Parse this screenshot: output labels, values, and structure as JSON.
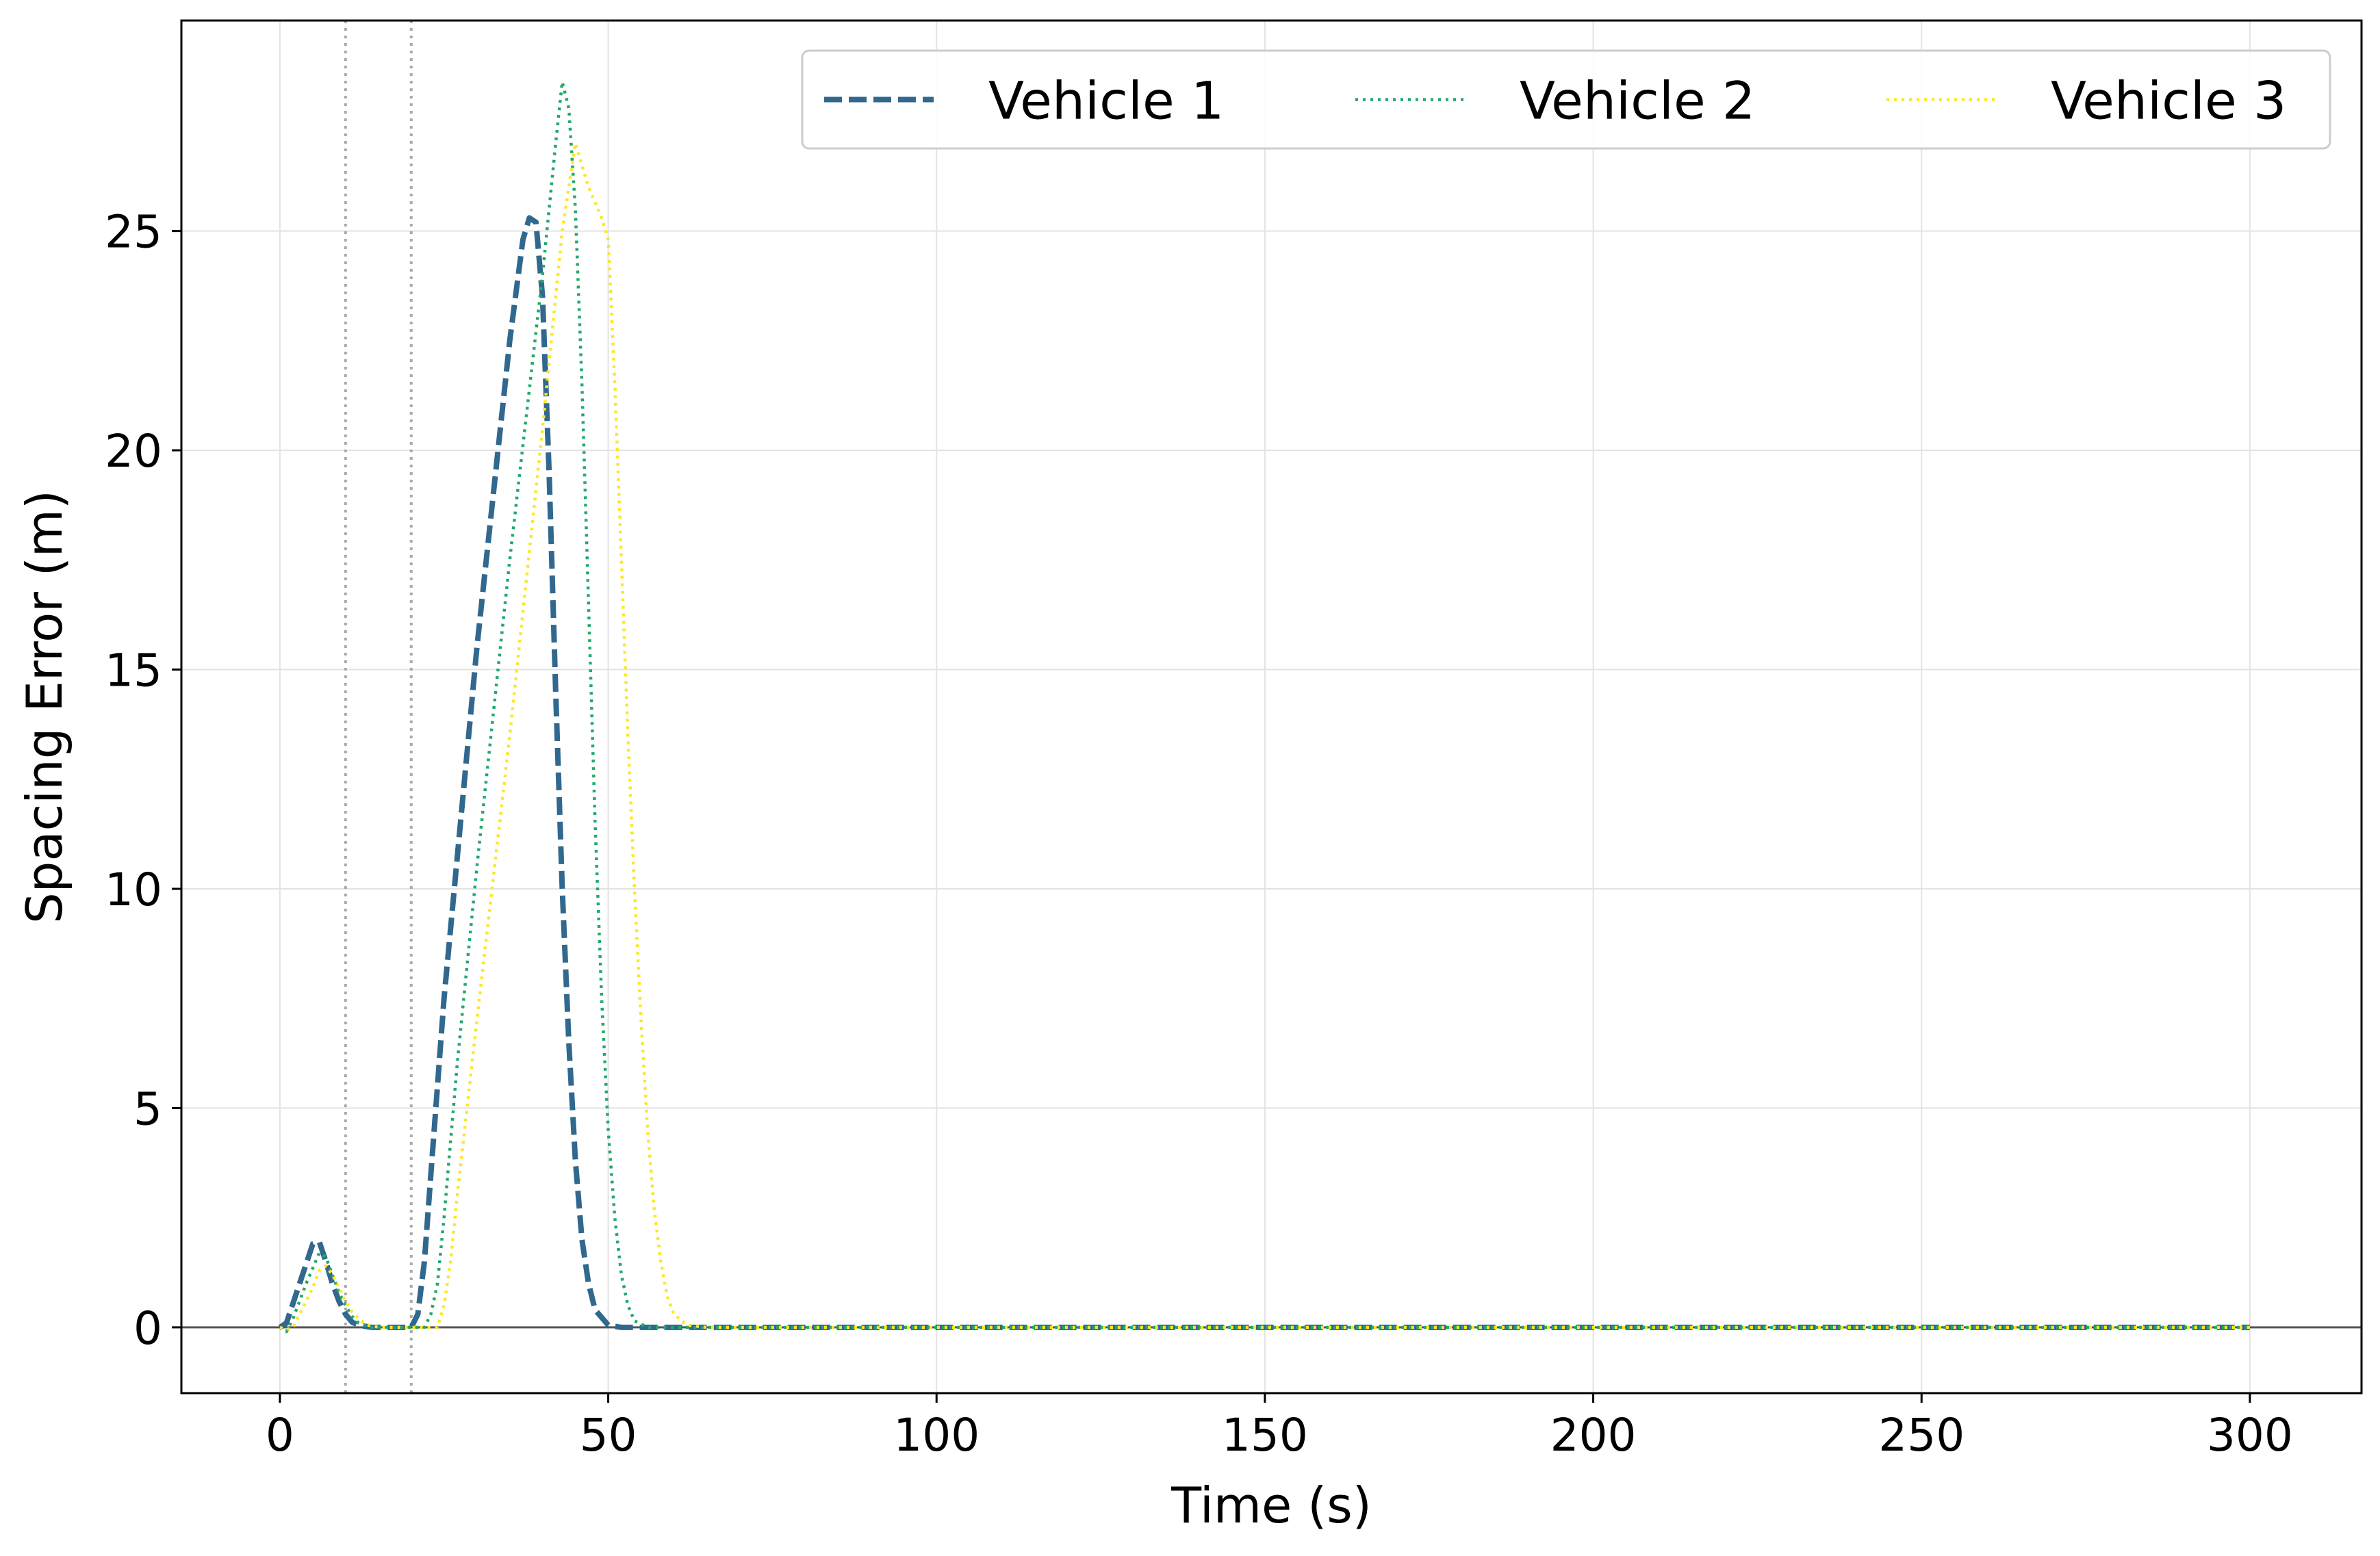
{
  "chart_data": {
    "type": "line",
    "xlabel": "Time (s)",
    "ylabel": "Spacing Error (m)",
    "xlim": [
      -15,
      317
    ],
    "ylim": [
      -1.5,
      29.8
    ],
    "xticks": [
      0,
      50,
      100,
      150,
      200,
      250,
      300
    ],
    "yticks": [
      0,
      5,
      10,
      15,
      20,
      25
    ],
    "grid": true,
    "legend": {
      "placement": "top-right",
      "columns": 3
    },
    "reference_lines": {
      "horizontal_zero": {
        "y": 0,
        "color": "#555555"
      },
      "vertical_markers": [
        {
          "x": 10,
          "style": "dotted",
          "color": "#aaaaaa"
        },
        {
          "x": 20,
          "style": "dotted",
          "color": "#aaaaaa"
        }
      ]
    },
    "series": [
      {
        "name": "Vehicle 1",
        "color": "#31688e",
        "style": "dashed",
        "x": [
          0,
          1,
          3,
          5,
          6,
          7,
          8,
          9,
          10,
          11,
          12,
          14,
          16,
          18,
          19,
          20,
          21,
          22,
          23,
          25,
          30,
          35,
          37,
          38,
          39,
          40,
          41,
          42,
          43,
          44,
          45,
          46,
          47,
          48,
          50,
          52,
          55,
          60,
          100,
          150,
          200,
          250,
          300
        ],
        "y": [
          0,
          0.1,
          1.0,
          1.9,
          1.95,
          1.5,
          1.0,
          0.6,
          0.3,
          0.12,
          0.05,
          0.0,
          0.0,
          0.0,
          0.0,
          0.0,
          0.3,
          1.5,
          3.5,
          7.5,
          15.5,
          22.5,
          24.8,
          25.3,
          25.2,
          23.5,
          19.5,
          14.5,
          10.0,
          6.5,
          3.8,
          2.0,
          1.0,
          0.4,
          0.05,
          0.0,
          0.0,
          0.0,
          0.0,
          0.0,
          0.0,
          0.0,
          0.0
        ]
      },
      {
        "name": "Vehicle 2",
        "color": "#21a96b",
        "style": "dotted",
        "x": [
          0,
          1,
          2,
          4,
          6,
          7,
          8,
          9,
          10,
          11,
          12,
          14,
          18,
          20,
          22,
          23,
          24,
          25,
          27,
          30,
          35,
          40,
          42,
          43,
          44,
          45,
          46,
          47,
          48,
          49,
          50,
          51,
          52,
          53,
          54,
          56,
          60,
          100,
          150,
          200,
          250,
          300
        ],
        "y": [
          0,
          -0.1,
          0.2,
          1.0,
          1.7,
          1.6,
          1.2,
          0.8,
          0.5,
          0.25,
          0.1,
          0.0,
          0.0,
          0.0,
          0.0,
          0.3,
          1.0,
          2.5,
          6.0,
          10.5,
          17.5,
          24.0,
          27.0,
          28.4,
          27.8,
          25.5,
          21.5,
          16.5,
          11.5,
          7.5,
          4.5,
          2.5,
          1.2,
          0.5,
          0.15,
          0.0,
          0.0,
          0.0,
          0.0,
          0.0,
          0.0,
          0.0
        ]
      },
      {
        "name": "Vehicle 3",
        "color": "#fde725",
        "style": "dotted",
        "x": [
          0,
          1,
          2,
          3,
          5,
          6,
          7,
          8,
          9,
          10,
          11,
          12,
          13,
          14,
          16,
          20,
          24,
          25,
          26,
          27,
          30,
          35,
          40,
          43,
          45,
          47,
          49,
          50,
          51,
          52,
          53,
          54,
          55,
          56,
          57,
          58,
          59,
          60,
          62,
          65,
          100,
          150,
          200,
          250,
          300
        ],
        "y": [
          0,
          -0.05,
          0.0,
          0.3,
          0.9,
          1.3,
          1.4,
          1.2,
          0.9,
          0.6,
          0.35,
          0.2,
          0.08,
          0.02,
          0.0,
          0.0,
          0.0,
          0.5,
          1.5,
          3.0,
          7.0,
          13.5,
          20.5,
          25.0,
          27.0,
          26.0,
          25.3,
          24.8,
          21.5,
          17.5,
          13.5,
          10.0,
          7.0,
          4.5,
          2.7,
          1.5,
          0.7,
          0.3,
          0.05,
          0.0,
          0.0,
          0.0,
          0.0,
          0.0,
          0.0
        ]
      }
    ]
  }
}
